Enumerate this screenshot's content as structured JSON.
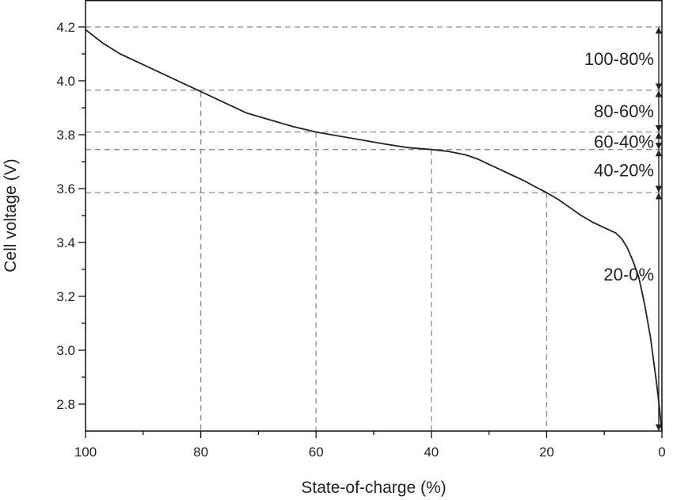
{
  "chart_data": {
    "type": "line",
    "xlabel": "State-of-charge (%)",
    "ylabel": "Cell voltage (V)",
    "xlim": [
      100,
      0
    ],
    "ylim": [
      2.7,
      4.3
    ],
    "x_reversed": true,
    "grid": false,
    "x_ticks": [
      100,
      80,
      60,
      40,
      20,
      0
    ],
    "x_tick_labels": [
      "100",
      "80",
      "60",
      "40",
      "20",
      "0"
    ],
    "y_ticks": [
      2.8,
      3.0,
      3.2,
      3.4,
      3.6,
      3.8,
      4.0,
      4.2
    ],
    "y_tick_labels": [
      "2.8",
      "3.0",
      "3.2",
      "3.4",
      "3.6",
      "3.8",
      "4.0",
      "4.2"
    ],
    "series": [
      {
        "x": [
          100,
          97,
          94,
          90,
          86,
          83,
          80,
          76,
          72,
          68,
          64,
          60,
          56,
          52,
          48,
          44,
          40,
          37,
          34,
          32,
          30,
          28,
          26,
          24,
          22,
          20,
          18,
          16,
          14,
          12,
          10,
          8,
          7,
          6,
          5,
          4,
          3,
          2,
          1.5,
          1,
          0.5,
          0
        ],
        "y": [
          4.19,
          4.14,
          4.1,
          4.06,
          4.02,
          3.99,
          3.96,
          3.92,
          3.88,
          3.855,
          3.83,
          3.81,
          3.795,
          3.78,
          3.765,
          3.752,
          3.745,
          3.738,
          3.725,
          3.71,
          3.69,
          3.67,
          3.65,
          3.63,
          3.607,
          3.585,
          3.56,
          3.53,
          3.5,
          3.475,
          3.455,
          3.435,
          3.415,
          3.38,
          3.33,
          3.27,
          3.17,
          3.05,
          2.97,
          2.89,
          2.8,
          2.7
        ],
        "color": "#222222"
      }
    ],
    "reference_lines": {
      "vertical_soc": [
        80,
        60,
        40,
        20
      ],
      "horizontal_voltage": [
        4.2,
        3.965,
        3.81,
        3.745,
        3.585
      ]
    },
    "bands": [
      {
        "label": "100-80%",
        "v_top": 4.2,
        "v_bottom": 3.965
      },
      {
        "label": "80-60%",
        "v_top": 3.965,
        "v_bottom": 3.81
      },
      {
        "label": "60-40%",
        "v_top": 3.81,
        "v_bottom": 3.745
      },
      {
        "label": "40-20%",
        "v_top": 3.745,
        "v_bottom": 3.585
      },
      {
        "label": "20-0%",
        "v_top": 3.585,
        "v_bottom": 2.7
      }
    ]
  }
}
